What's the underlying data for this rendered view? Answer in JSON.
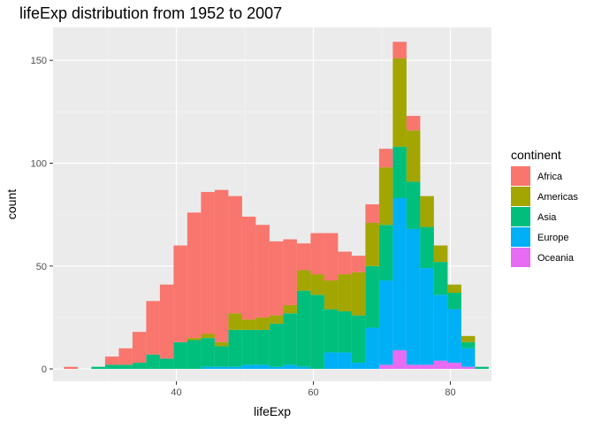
{
  "chart_data": {
    "type": "bar",
    "stacked": true,
    "title": "lifeExp distribution from 1952 to 2007",
    "xlabel": "lifeExp",
    "ylabel": "count",
    "xlim": [
      22.0,
      86.0
    ],
    "ylim": [
      -6,
      166
    ],
    "xticks": [
      40,
      60,
      80
    ],
    "yticks": [
      0,
      50,
      100,
      150
    ],
    "grid": true,
    "legend_position": "right",
    "legend_title": "continent",
    "bin_start": 23.6,
    "bin_width": 2.0,
    "series": [
      {
        "name": "Oceania",
        "color": "#E76BF3",
        "values": [
          0,
          0,
          0,
          0,
          0,
          0,
          0,
          0,
          0,
          0,
          0,
          0,
          0,
          0,
          0,
          0,
          0,
          0,
          0,
          0,
          0,
          0,
          0,
          2,
          9,
          2,
          2,
          4,
          3,
          1,
          0
        ]
      },
      {
        "name": "Europe",
        "color": "#00B0F6",
        "values": [
          0,
          0,
          0,
          0,
          0,
          0,
          0,
          0,
          0,
          0,
          1,
          1,
          1,
          2,
          2,
          1,
          2,
          1,
          0,
          8,
          8,
          3,
          20,
          41,
          74,
          66,
          47,
          32,
          26,
          9,
          0
        ]
      },
      {
        "name": "Asia",
        "color": "#00BF7D",
        "values": [
          0,
          0,
          1,
          2,
          2,
          3,
          7,
          5,
          13,
          14,
          14,
          10,
          18,
          17,
          17,
          21,
          25,
          37,
          36,
          21,
          20,
          23,
          30,
          27,
          25,
          23,
          20,
          16,
          8,
          3,
          1
        ]
      },
      {
        "name": "Americas",
        "color": "#A3A500",
        "values": [
          0,
          0,
          0,
          0,
          0,
          0,
          0,
          0,
          0,
          1,
          2,
          2,
          8,
          5,
          6,
          4,
          4,
          10,
          10,
          14,
          18,
          21,
          21,
          28,
          43,
          25,
          15,
          8,
          4,
          3,
          0
        ]
      },
      {
        "name": "Africa",
        "color": "#F8766D",
        "values": [
          1,
          0,
          0,
          4,
          8,
          15,
          26,
          36,
          47,
          61,
          69,
          74,
          57,
          50,
          45,
          36,
          32,
          13,
          20,
          23,
          11,
          8,
          9,
          9,
          8,
          7,
          0,
          0,
          0,
          0,
          0
        ]
      }
    ]
  },
  "legend": {
    "title": "continent",
    "items": [
      {
        "label": "Africa",
        "color": "#F8766D"
      },
      {
        "label": "Americas",
        "color": "#A3A500"
      },
      {
        "label": "Asia",
        "color": "#00BF7D"
      },
      {
        "label": "Europe",
        "color": "#00B0F6"
      },
      {
        "label": "Oceania",
        "color": "#E76BF3"
      }
    ]
  }
}
